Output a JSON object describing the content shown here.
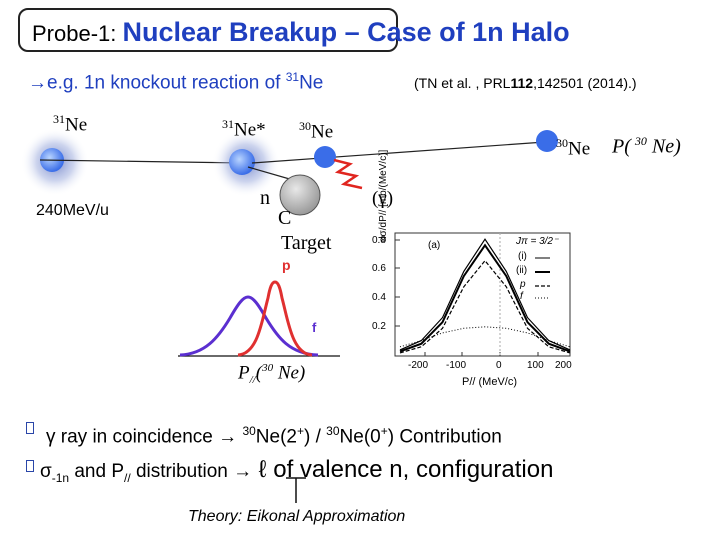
{
  "title": {
    "prefix": "Probe-1: ",
    "main": "Nuclear Breakup – Case of 1n Halo"
  },
  "example": {
    "arrow": "→",
    "text": "e.g. 1n knockout reaction of ",
    "sup": "31",
    "nucleus": "Ne"
  },
  "reference": {
    "pre": "(TN et al. , PRL",
    "vol": "112",
    "post": ",142501 (2014).)"
  },
  "diagram": {
    "ne31_left_sup": "31",
    "ne31_left": "Ne",
    "ne31_star_sup": "31",
    "ne31_star": "Ne*",
    "ne30_mid_sup": "30",
    "ne30_mid": "Ne",
    "ne30_right_sup": "30",
    "ne30_right": "Ne",
    "energy": "240MeV/u",
    "neutron": "n",
    "carbon": "C",
    "target": "Target",
    "gamma": "(γ)",
    "p_label": "p",
    "f_label": "f",
    "pdist_label": "P( ",
    "pdist_sup": "30",
    "pdist_end": " Ne)",
    "ppar_label": "P",
    "ppar_sub": "//",
    "ppar_paren": "(",
    "ppar_sup": "30",
    "ppar_end": " Ne)"
  },
  "chart_data": {
    "type": "line",
    "xlabel": "P// (MeV/c)",
    "ylabel": "dσ/dP// [mb/(MeV/c)]",
    "xlim": [
      -200,
      200
    ],
    "ylim": [
      0,
      0.8
    ],
    "x_ticks": [
      "-200",
      "-100",
      "0",
      "100",
      "200"
    ],
    "y_ticks": [
      "0.8",
      "0.6",
      "0.4",
      "0.2"
    ],
    "panel": "(a)",
    "legend_title": "Jπ = 3/2⁻",
    "legend": [
      "(i)",
      "(ii)",
      "p",
      "f"
    ],
    "x": [
      -200,
      -150,
      -100,
      -50,
      0,
      50,
      100,
      150,
      200
    ],
    "series": [
      {
        "name": "(i)",
        "values": [
          0.03,
          0.08,
          0.22,
          0.52,
          0.72,
          0.52,
          0.22,
          0.08,
          0.03
        ]
      },
      {
        "name": "(ii)",
        "values": [
          0.04,
          0.1,
          0.25,
          0.55,
          0.76,
          0.55,
          0.25,
          0.1,
          0.04
        ]
      },
      {
        "name": "p",
        "values": [
          0.02,
          0.06,
          0.18,
          0.45,
          0.62,
          0.45,
          0.18,
          0.06,
          0.02
        ]
      },
      {
        "name": "f",
        "values": [
          0.06,
          0.1,
          0.15,
          0.18,
          0.19,
          0.18,
          0.15,
          0.1,
          0.06
        ]
      }
    ]
  },
  "bullets": {
    "line1": {
      "gamma": "γ ray in coincidence ",
      "arrow": "→",
      "mid": " ",
      "sup1": "30",
      "ne1": "Ne(2",
      "sp1": "+",
      "m1": ") / ",
      "sup2": "30",
      "ne2": "Ne(0",
      "sp2": "+",
      "end": ") Contribution"
    },
    "line2": {
      "sigma": "σ",
      "sub": "-1n",
      "mid": " and P",
      "pdsub": "//",
      "dist": " distribution ",
      "arrow": "→",
      "ell": " ℓ ",
      "end": "of valence n, configuration"
    },
    "theory": "Theory: Eikonal Approximation"
  },
  "colors": {
    "title_blue": "#1f3fbf",
    "p_red": "#e03030",
    "f_purple": "#5b2fd0",
    "nucleus_blue": "#4a7ff0"
  }
}
